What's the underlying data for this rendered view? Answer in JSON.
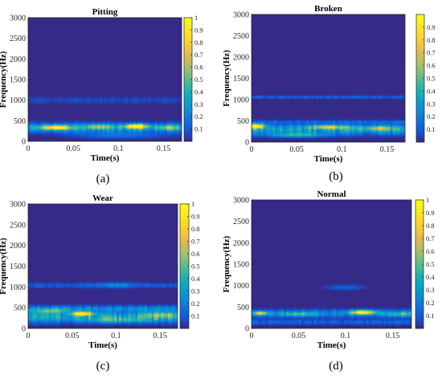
{
  "figure": {
    "panels": [
      {
        "caption": "(a)"
      },
      {
        "caption": "(b)"
      },
      {
        "caption": "(c)"
      },
      {
        "caption": "(d)"
      }
    ]
  },
  "colors": {
    "background": "#352a87",
    "colormap": "parula"
  },
  "chart_data": [
    {
      "type": "heatmap",
      "title": "Pitting",
      "xlabel": "Time(s)",
      "ylabel": "Frequency(Hz)",
      "xlim": [
        0,
        0.17
      ],
      "ylim": [
        0,
        3000
      ],
      "xticks": [
        0,
        0.05,
        0.1,
        0.15
      ],
      "xtick_labels": [
        "0",
        "0.05",
        "0.1",
        "0.15"
      ],
      "yticks": [
        0,
        500,
        1000,
        1500,
        2000,
        2500,
        3000
      ],
      "ytick_labels": [
        "0",
        "500",
        "1000",
        "1500",
        "2000",
        "2500",
        "3000"
      ],
      "colorbar": {
        "range": [
          0,
          1
        ],
        "ticks": [
          0.1,
          0.2,
          0.3,
          0.4,
          0.5,
          0.6,
          0.7,
          0.8,
          0.9,
          1
        ],
        "tick_labels": [
          "0.1",
          "0.2",
          "0.3",
          "0.4",
          "0.5",
          "0.6",
          "0.7",
          "0.8",
          "0.9",
          "1"
        ]
      },
      "bands": [
        {
          "f": 1000,
          "amp": 0.06,
          "df": 80
        },
        {
          "f": 330,
          "amp": 0.3,
          "df": 110
        }
      ],
      "hotspots": [
        {
          "t": 0.03,
          "f": 340,
          "amp": 0.75,
          "dt": 0.016,
          "df": 55
        },
        {
          "t": 0.078,
          "f": 360,
          "amp": 0.4,
          "dt": 0.015,
          "df": 60
        },
        {
          "t": 0.12,
          "f": 370,
          "amp": 0.85,
          "dt": 0.013,
          "df": 55
        },
        {
          "t": 0.155,
          "f": 340,
          "amp": 0.35,
          "dt": 0.012,
          "df": 60
        },
        {
          "t": 0.1,
          "f": 150,
          "amp": 0.15,
          "dt": 0.05,
          "df": 80
        }
      ]
    },
    {
      "type": "heatmap",
      "title": "Broken",
      "xlabel": "Time(s)",
      "ylabel": "Frequency(Hz)",
      "xlim": [
        0,
        0.17
      ],
      "ylim": [
        0,
        3000
      ],
      "xticks": [
        0,
        0.05,
        0.1,
        0.15
      ],
      "xtick_labels": [
        "0",
        "0.05",
        "0.1",
        "0.15"
      ],
      "yticks": [
        0,
        500,
        1000,
        1500,
        2000,
        2500,
        3000
      ],
      "ytick_labels": [
        "0",
        "500",
        "1000",
        "1500",
        "2000",
        "2500",
        "3000"
      ],
      "colorbar": {
        "range": [
          0,
          1
        ],
        "ticks": [
          0.1,
          0.2,
          0.3,
          0.4,
          0.5,
          0.6,
          0.7,
          0.8,
          0.9
        ],
        "tick_labels": [
          "0.1",
          "0.2",
          "0.3",
          "0.4",
          "0.5",
          "0.6",
          "0.7",
          "0.8",
          "0.9"
        ]
      },
      "bands": [
        {
          "f": 1060,
          "amp": 0.12,
          "df": 35
        },
        {
          "f": 480,
          "amp": 0.1,
          "df": 40
        },
        {
          "f": 300,
          "amp": 0.32,
          "df": 120
        }
      ],
      "hotspots": [
        {
          "t": 0.005,
          "f": 380,
          "amp": 0.9,
          "dt": 0.01,
          "df": 55
        },
        {
          "t": 0.085,
          "f": 360,
          "amp": 0.55,
          "dt": 0.02,
          "df": 50
        },
        {
          "t": 0.14,
          "f": 330,
          "amp": 0.35,
          "dt": 0.02,
          "df": 60
        },
        {
          "t": 0.05,
          "f": 170,
          "amp": 0.35,
          "dt": 0.03,
          "df": 50
        }
      ]
    },
    {
      "type": "heatmap",
      "title": "Wear",
      "xlabel": "Time(s)",
      "ylabel": "Frequency(Hz)",
      "xlim": [
        0,
        0.17
      ],
      "ylim": [
        0,
        3000
      ],
      "xticks": [
        0,
        0.05,
        0.1,
        0.15
      ],
      "xtick_labels": [
        "0",
        "0.05",
        "0.1",
        "0.15"
      ],
      "yticks": [
        0,
        500,
        1000,
        1500,
        2000,
        2500,
        3000
      ],
      "ytick_labels": [
        "0",
        "500",
        "1000",
        "1500",
        "2000",
        "2500",
        "3000"
      ],
      "colorbar": {
        "range": [
          0,
          1
        ],
        "ticks": [
          0.1,
          0.2,
          0.3,
          0.4,
          0.5,
          0.6,
          0.7,
          0.8,
          0.9,
          1
        ],
        "tick_labels": [
          "0.1",
          "0.2",
          "0.3",
          "0.4",
          "0.5",
          "0.6",
          "0.7",
          "0.8",
          "0.9",
          "1"
        ]
      },
      "bands": [
        {
          "f": 1040,
          "amp": 0.1,
          "df": 60
        },
        {
          "f": 480,
          "amp": 0.22,
          "df": 70
        },
        {
          "f": 280,
          "amp": 0.32,
          "df": 130
        }
      ],
      "hotspots": [
        {
          "t": 0.062,
          "f": 360,
          "amp": 0.85,
          "dt": 0.012,
          "df": 50
        },
        {
          "t": 0.025,
          "f": 420,
          "amp": 0.35,
          "dt": 0.02,
          "df": 60
        },
        {
          "t": 0.15,
          "f": 330,
          "amp": 0.35,
          "dt": 0.02,
          "df": 70
        },
        {
          "t": 0.1,
          "f": 1050,
          "amp": 0.15,
          "dt": 0.02,
          "df": 60
        },
        {
          "t": 0.1,
          "f": 200,
          "amp": 0.25,
          "dt": 0.04,
          "df": 60
        }
      ]
    },
    {
      "type": "heatmap",
      "title": "Normal",
      "xlabel": "Time(s)",
      "ylabel": "Frequency(Hz)",
      "xlim": [
        0,
        0.17
      ],
      "ylim": [
        0,
        3000
      ],
      "xticks": [
        0,
        0.05,
        0.1,
        0.15
      ],
      "xtick_labels": [
        "0",
        "0.05",
        "0.1",
        "0.15"
      ],
      "yticks": [
        0,
        500,
        1000,
        1500,
        2000,
        2500,
        3000
      ],
      "ytick_labels": [
        "0",
        "500",
        "1000",
        "1500",
        "2000",
        "2500",
        "3000"
      ],
      "colorbar": {
        "range": [
          0,
          1
        ],
        "ticks": [
          0.1,
          0.2,
          0.3,
          0.4,
          0.5,
          0.6,
          0.7,
          0.8,
          0.9,
          1
        ],
        "tick_labels": [
          "0.1",
          "0.2",
          "0.3",
          "0.4",
          "0.5",
          "0.6",
          "0.7",
          "0.8",
          "0.9",
          "1"
        ]
      },
      "bands": [
        {
          "f": 350,
          "amp": 0.2,
          "df": 90
        },
        {
          "f": 150,
          "amp": 0.12,
          "df": 60
        }
      ],
      "hotspots": [
        {
          "t": 0.118,
          "f": 380,
          "amp": 0.85,
          "dt": 0.013,
          "df": 50
        },
        {
          "t": 0.01,
          "f": 360,
          "amp": 0.6,
          "dt": 0.008,
          "df": 40
        },
        {
          "t": 0.05,
          "f": 340,
          "amp": 0.3,
          "dt": 0.02,
          "df": 50
        },
        {
          "t": 0.1,
          "f": 960,
          "amp": 0.12,
          "dt": 0.02,
          "df": 60
        },
        {
          "t": 0.16,
          "f": 340,
          "amp": 0.3,
          "dt": 0.015,
          "df": 60
        }
      ]
    }
  ]
}
